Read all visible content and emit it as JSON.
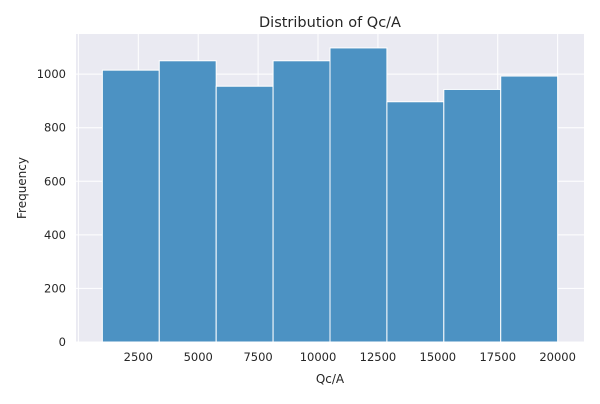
{
  "chart_data": {
    "type": "bar",
    "title": "Distribution of Qc/A",
    "xlabel": "Qc/A",
    "ylabel": "Frequency",
    "bin_edges": [
      1000,
      3375,
      5750,
      8125,
      10500,
      12875,
      15250,
      17625,
      20000
    ],
    "values": [
      1015,
      1050,
      955,
      1050,
      1098,
      897,
      943,
      993
    ],
    "xlim": [
      -100,
      21100
    ],
    "ylim": [
      0,
      1150
    ],
    "xticks": [
      2500,
      5000,
      7500,
      10000,
      12500,
      15000,
      17500,
      20000
    ],
    "yticks": [
      0,
      200,
      400,
      600,
      800,
      1000
    ],
    "grid": true,
    "legend": "none",
    "colors": {
      "bar_fill": "#4c92c3",
      "bar_edge": "#ffffff",
      "axes_bg": "#eaeaf2",
      "grid": "#ffffff",
      "text": "#262626"
    }
  }
}
